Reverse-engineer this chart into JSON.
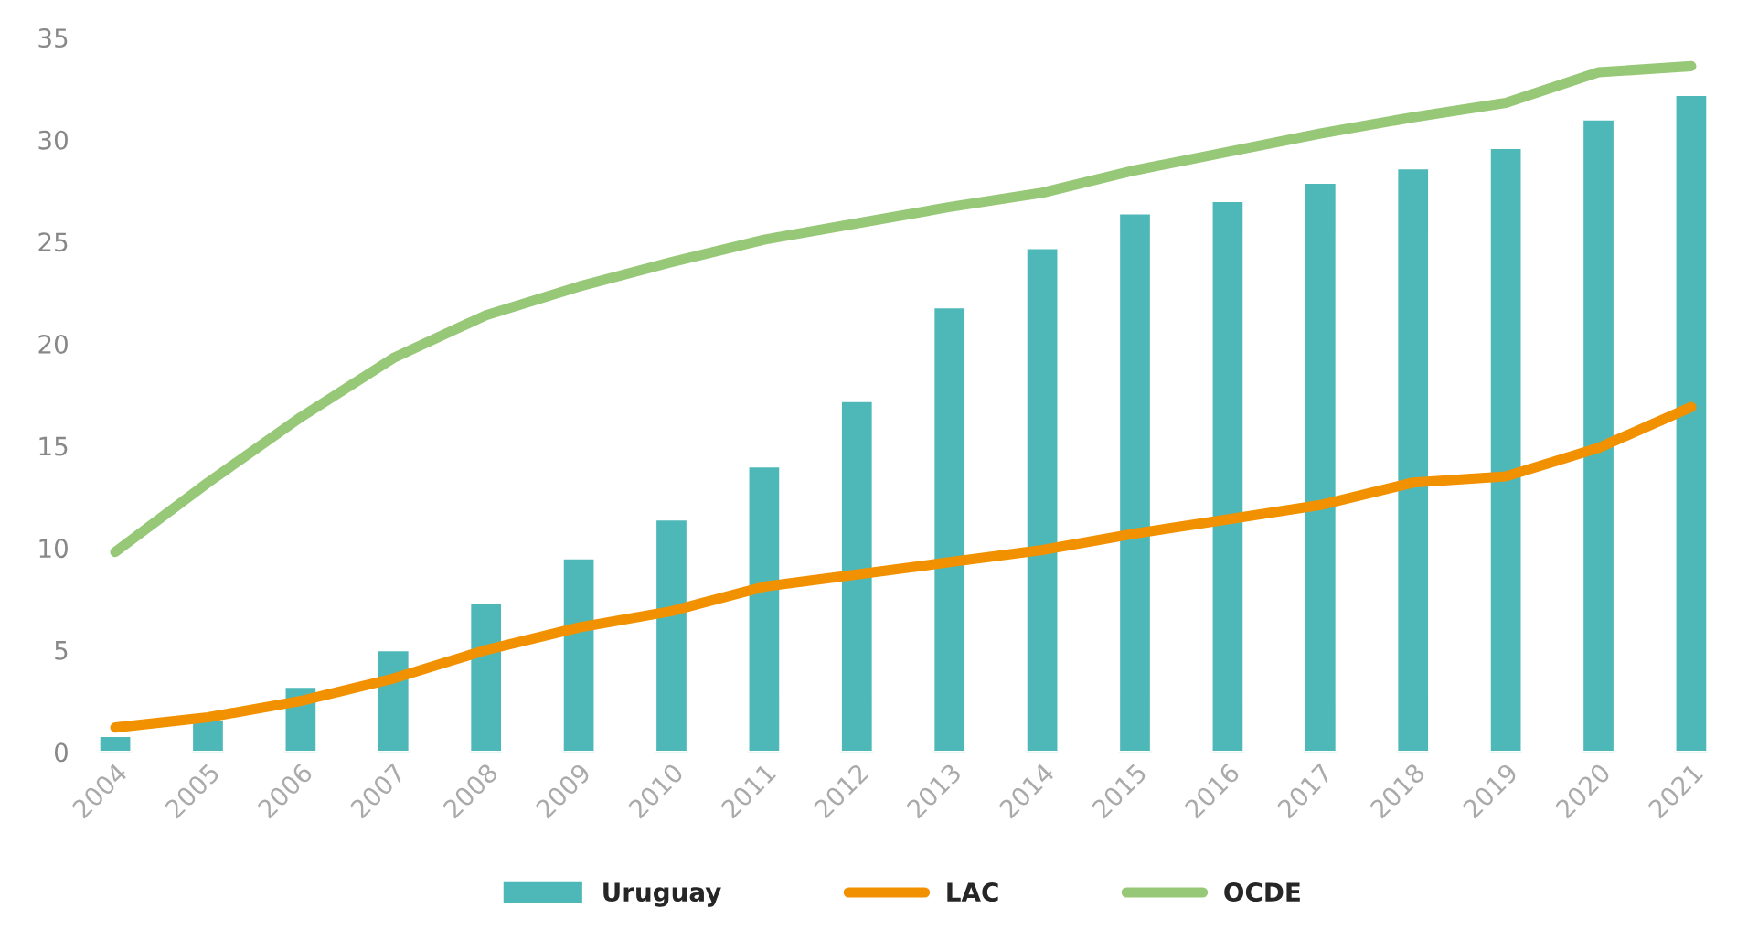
{
  "chart_data": {
    "type": "bar",
    "categories": [
      "2004",
      "2005",
      "2006",
      "2007",
      "2008",
      "2009",
      "2010",
      "2011",
      "2012",
      "2013",
      "2014",
      "2015",
      "2016",
      "2017",
      "2018",
      "2019",
      "2020",
      "2021"
    ],
    "series": [
      {
        "name": "Uruguay",
        "color": "#4eb8b9",
        "values": [
          0.8,
          1.6,
          3.2,
          5.0,
          7.3,
          9.5,
          11.4,
          14.0,
          17.2,
          21.8,
          24.7,
          26.4,
          27.0,
          27.9,
          28.6,
          29.6,
          31.0,
          32.2
        ]
      },
      {
        "name": "LAC",
        "type": "line",
        "color": "#f29100",
        "values": [
          1.2,
          1.7,
          2.5,
          3.6,
          5.0,
          6.1,
          6.9,
          8.1,
          8.7,
          9.3,
          9.9,
          10.7,
          11.4,
          12.1,
          13.2,
          13.5,
          14.9,
          16.9
        ]
      },
      {
        "name": "OCDE",
        "type": "line",
        "color": "#97c878",
        "values": [
          9.8,
          13.2,
          16.4,
          19.3,
          21.4,
          22.8,
          24.0,
          25.1,
          25.9,
          26.7,
          27.4,
          28.5,
          29.4,
          30.3,
          31.1,
          31.8,
          33.3,
          33.6
        ]
      }
    ],
    "ylim": [
      0,
      35
    ],
    "yticks": [
      0,
      5,
      10,
      15,
      20,
      25,
      30,
      35
    ],
    "grid": false,
    "legend": "bottom",
    "marker": "none",
    "line_style": "solid"
  }
}
